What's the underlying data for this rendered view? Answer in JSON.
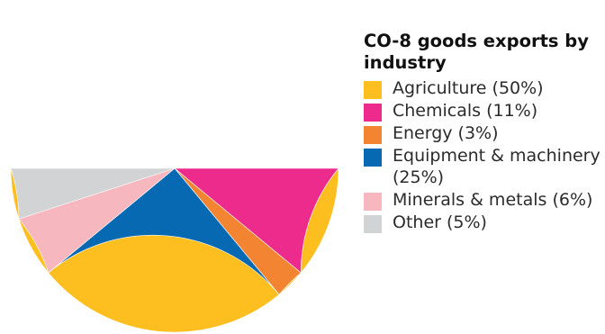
{
  "chart_data": {
    "type": "pie",
    "title": "CO-8 goods exports by industry",
    "slices": [
      {
        "label": "Agriculture (50%)",
        "value": 50,
        "color": "#fdbf1f"
      },
      {
        "label": "Chemicals (11%)",
        "value": 11,
        "color": "#ec2b8c"
      },
      {
        "label": "Energy (3%)",
        "value": 3,
        "color": "#f28432"
      },
      {
        "label": "Equipment & machinery (25%)",
        "value": 25,
        "color": "#0669b2"
      },
      {
        "label": "Minerals & metals (6%)",
        "value": 6,
        "color": "#f6b7bf"
      },
      {
        "label": "Other (5%)",
        "value": 5,
        "color": "#d1d3d4"
      }
    ],
    "legend_position": "right"
  }
}
